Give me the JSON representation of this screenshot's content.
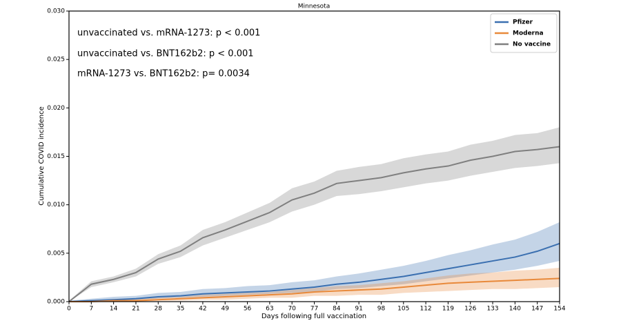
{
  "chart_data": {
    "type": "line",
    "title": "Minnesota",
    "xlabel": "Days following full vaccination",
    "ylabel": "Cumulative COVID incidence",
    "annotations": [
      "unvaccinated vs. mRNA-1273: p < 0.001",
      "unvaccinated vs. BNT162b2: p < 0.001",
      "mRNA-1273 vs. BNT162b2: p= 0.0034"
    ],
    "legend": "upper right",
    "x": [
      0,
      7,
      14,
      21,
      28,
      35,
      42,
      49,
      56,
      63,
      70,
      77,
      84,
      91,
      98,
      105,
      112,
      119,
      126,
      133,
      140,
      147,
      154
    ],
    "xlim": [
      0,
      154
    ],
    "xticks": [
      0,
      7,
      14,
      21,
      28,
      35,
      42,
      49,
      56,
      63,
      70,
      77,
      84,
      91,
      98,
      105,
      112,
      119,
      126,
      133,
      140,
      147,
      154
    ],
    "ylim": [
      0,
      0.03
    ],
    "yticks": [
      {
        "value": 0,
        "label": "0.000"
      },
      0.005,
      {
        "value": 0.01,
        "label": "0.010"
      },
      0.015,
      {
        "value": 0.02,
        "label": "0.020"
      },
      0.025,
      {
        "value": 0.03,
        "label": "0.030"
      }
    ],
    "series": [
      {
        "name": "Pfizer",
        "color": "#3a6fb0",
        "values": [
          0,
          0.0001,
          0.0002,
          0.0003,
          0.0005,
          0.0006,
          0.0008,
          0.0009,
          0.001,
          0.0011,
          0.0013,
          0.0015,
          0.0018,
          0.002,
          0.0023,
          0.0026,
          0.003,
          0.0034,
          0.0038,
          0.0042,
          0.0046,
          0.0052,
          0.006
        ],
        "upper": [
          0.0001,
          0.0003,
          0.0005,
          0.0006,
          0.0009,
          0.001,
          0.0013,
          0.0014,
          0.0016,
          0.0017,
          0.002,
          0.0022,
          0.0026,
          0.0029,
          0.0033,
          0.0037,
          0.0042,
          0.0048,
          0.0053,
          0.0059,
          0.0064,
          0.0072,
          0.0082
        ],
        "lower": [
          0,
          0,
          0.0001,
          0.0002,
          0.0003,
          0.0004,
          0.0005,
          0.0006,
          0.0007,
          0.0008,
          0.0009,
          0.001,
          0.0013,
          0.0014,
          0.0016,
          0.0018,
          0.0021,
          0.0024,
          0.0027,
          0.003,
          0.0033,
          0.0037,
          0.0042
        ]
      },
      {
        "name": "Moderna",
        "color": "#e8893a",
        "values": [
          0,
          0,
          0.0001,
          0.0001,
          0.0002,
          0.0003,
          0.0004,
          0.0005,
          0.0006,
          0.0007,
          0.0008,
          0.001,
          0.0011,
          0.0012,
          0.0013,
          0.0015,
          0.0017,
          0.0019,
          0.002,
          0.0021,
          0.0022,
          0.0023,
          0.0024
        ],
        "upper": [
          0,
          0.0001,
          0.0002,
          0.0003,
          0.0004,
          0.0005,
          0.0007,
          0.0008,
          0.0009,
          0.001,
          0.0012,
          0.0014,
          0.0016,
          0.0017,
          0.0019,
          0.0021,
          0.0024,
          0.0027,
          0.0029,
          0.003,
          0.0032,
          0.0033,
          0.0035
        ],
        "lower": [
          0,
          0,
          0,
          0,
          0.0001,
          0.0001,
          0.0002,
          0.0002,
          0.0003,
          0.0004,
          0.0004,
          0.0006,
          0.0006,
          0.0007,
          0.0007,
          0.0009,
          0.001,
          0.0011,
          0.0012,
          0.0013,
          0.0013,
          0.0014,
          0.0015
        ]
      },
      {
        "name": "No vaccine",
        "color": "#7f7f7f",
        "values": [
          0,
          0.0018,
          0.0023,
          0.003,
          0.0044,
          0.0052,
          0.0066,
          0.0074,
          0.0083,
          0.0092,
          0.0105,
          0.0112,
          0.0122,
          0.0125,
          0.0128,
          0.0133,
          0.0137,
          0.014,
          0.0146,
          0.015,
          0.0155,
          0.0157,
          0.016
        ],
        "upper": [
          0.0001,
          0.0021,
          0.0026,
          0.0034,
          0.0049,
          0.0058,
          0.0074,
          0.0082,
          0.0092,
          0.0102,
          0.0117,
          0.0124,
          0.0135,
          0.0139,
          0.0142,
          0.0148,
          0.0152,
          0.0155,
          0.0162,
          0.0166,
          0.0172,
          0.0174,
          0.018
        ],
        "lower": [
          0,
          0.0015,
          0.002,
          0.0026,
          0.0039,
          0.0046,
          0.0058,
          0.0066,
          0.0074,
          0.0082,
          0.0093,
          0.01,
          0.0109,
          0.0111,
          0.0114,
          0.0118,
          0.0122,
          0.0125,
          0.013,
          0.0134,
          0.0138,
          0.014,
          0.0143
        ]
      }
    ]
  }
}
